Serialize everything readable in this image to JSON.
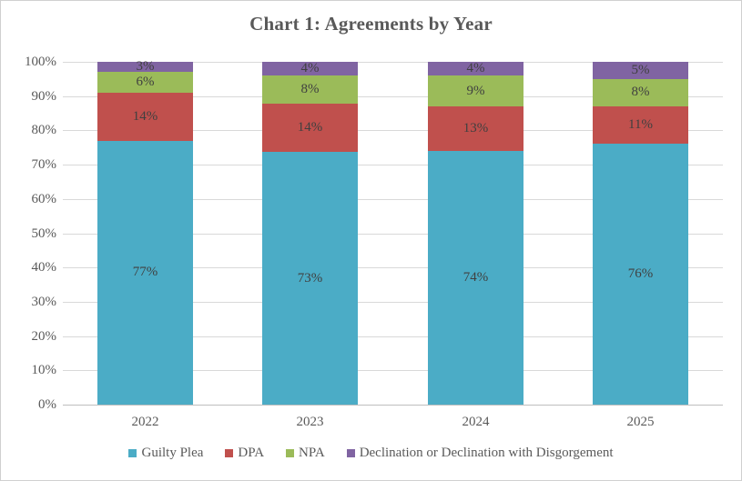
{
  "chart_data": {
    "type": "bar",
    "stacked": true,
    "percent_stacked": true,
    "title": "Chart 1: Agreements by Year",
    "categories": [
      "2022",
      "2023",
      "2024",
      "2025"
    ],
    "series": [
      {
        "name": "Guilty Plea",
        "color": "#4BACC6",
        "values": [
          77,
          73,
          74,
          76
        ]
      },
      {
        "name": "DPA",
        "color": "#C0504D",
        "values": [
          14,
          14,
          13,
          11
        ]
      },
      {
        "name": "NPA",
        "color": "#9BBB59",
        "values": [
          6,
          8,
          9,
          8
        ]
      },
      {
        "name": "Declination or Declination with Disgorgement",
        "color": "#8064A2",
        "values": [
          3,
          4,
          4,
          5
        ]
      }
    ],
    "data_labels": [
      [
        "77%",
        "73%",
        "74%",
        "76%"
      ],
      [
        "14%",
        "14%",
        "13%",
        "11%"
      ],
      [
        "6%",
        "8%",
        "9%",
        "8%"
      ],
      [
        "3%",
        "4%",
        "4%",
        "5%"
      ]
    ],
    "value_suffix": "%",
    "y_ticks": [
      "0%",
      "10%",
      "20%",
      "30%",
      "40%",
      "50%",
      "60%",
      "70%",
      "80%",
      "90%",
      "100%"
    ],
    "ylim": [
      0,
      100
    ],
    "grid": true,
    "legend_position": "bottom",
    "colors": {
      "title_text": "#595959",
      "axis_text": "#595959",
      "data_label_text": "#404040",
      "gridline": "#d9d9d9",
      "axis_line": "#bfbfbf",
      "chart_border": "#d0d0d0",
      "background": "#ffffff"
    }
  }
}
